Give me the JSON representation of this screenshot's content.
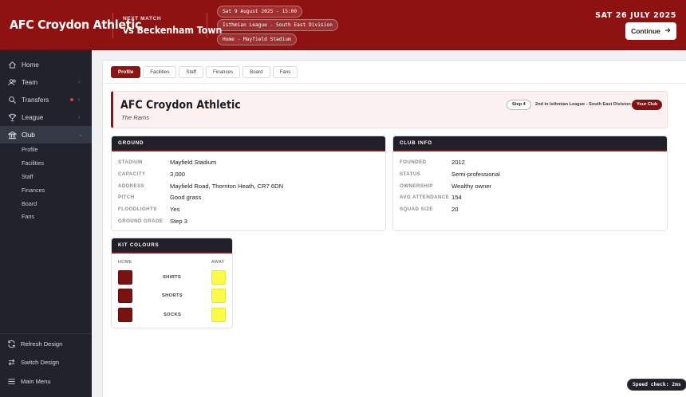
{
  "header": {
    "club_name": "AFC Croydon Athletic",
    "next_match_label": "NEXT MATCH",
    "next_opponent": "vs Beckenham Town",
    "fixture_date": "Sat 9 August 2025 - 15:00",
    "fixture_league": "Isthmian League - South East Division",
    "fixture_venue": "Home - Mayfield Stadium",
    "current_date": "SAT 26 JULY 2025",
    "continue_label": "Continue"
  },
  "sidebar": {
    "items": [
      {
        "label": "Home",
        "icon": "home-icon"
      },
      {
        "label": "Team",
        "icon": "team-icon"
      },
      {
        "label": "Transfers",
        "icon": "search-icon"
      },
      {
        "label": "League",
        "icon": "trophy-icon"
      },
      {
        "label": "Club",
        "icon": "club-icon"
      }
    ],
    "sub_items": [
      "Profile",
      "Facilities",
      "Staff",
      "Finances",
      "Board",
      "Fans"
    ],
    "bottom": [
      {
        "label": "Refresh Design",
        "icon": "refresh-icon"
      },
      {
        "label": "Switch Design",
        "icon": "switch-icon"
      },
      {
        "label": "Main Menu",
        "icon": "menu-icon"
      }
    ]
  },
  "tabs": [
    "Profile",
    "Facilities",
    "Staff",
    "Finances",
    "Board",
    "Fans"
  ],
  "banner": {
    "title": "AFC Croydon Athletic",
    "nickname": "The Rams",
    "step": "Step 4",
    "league_position": "2nd in Isthmian League - South East Division",
    "your_club": "Your Club"
  },
  "ground": {
    "heading": "GROUND",
    "rows": [
      {
        "key": "STADIUM",
        "value": "Mayfield Stadium"
      },
      {
        "key": "CAPACITY",
        "value": "3,000"
      },
      {
        "key": "ADDRESS",
        "value": "Mayfield Road, Thornton Heath, CR7 6DN"
      },
      {
        "key": "PITCH",
        "value": "Good grass"
      },
      {
        "key": "FLOODLIGHTS",
        "value": "Yes"
      },
      {
        "key": "GROUND GRADE",
        "value": "Step 3"
      }
    ]
  },
  "club_info": {
    "heading": "CLUB INFO",
    "rows": [
      {
        "key": "FOUNDED",
        "value": "2012"
      },
      {
        "key": "STATUS",
        "value": "Semi-professional"
      },
      {
        "key": "OWNERSHIP",
        "value": "Wealthy owner"
      },
      {
        "key": "AVG ATTENDANCE",
        "value": "154"
      },
      {
        "key": "SQUAD SIZE",
        "value": "20"
      }
    ]
  },
  "kit": {
    "heading": "KIT COLOURS",
    "home_label": "HOME",
    "away_label": "AWAY",
    "rows": [
      {
        "label": "SHIRTS",
        "home": "#7a1212",
        "away": "#fafa4a"
      },
      {
        "label": "SHORTS",
        "home": "#7a1212",
        "away": "#fafa4a"
      },
      {
        "label": "SOCKS",
        "home": "#7a1212",
        "away": "#fafa4a"
      }
    ]
  },
  "speed_check": "Speed check: 2ms",
  "colors": {
    "brand": "#8f1212",
    "sidebar": "#20232b",
    "away_kit": "#fafa4a"
  }
}
